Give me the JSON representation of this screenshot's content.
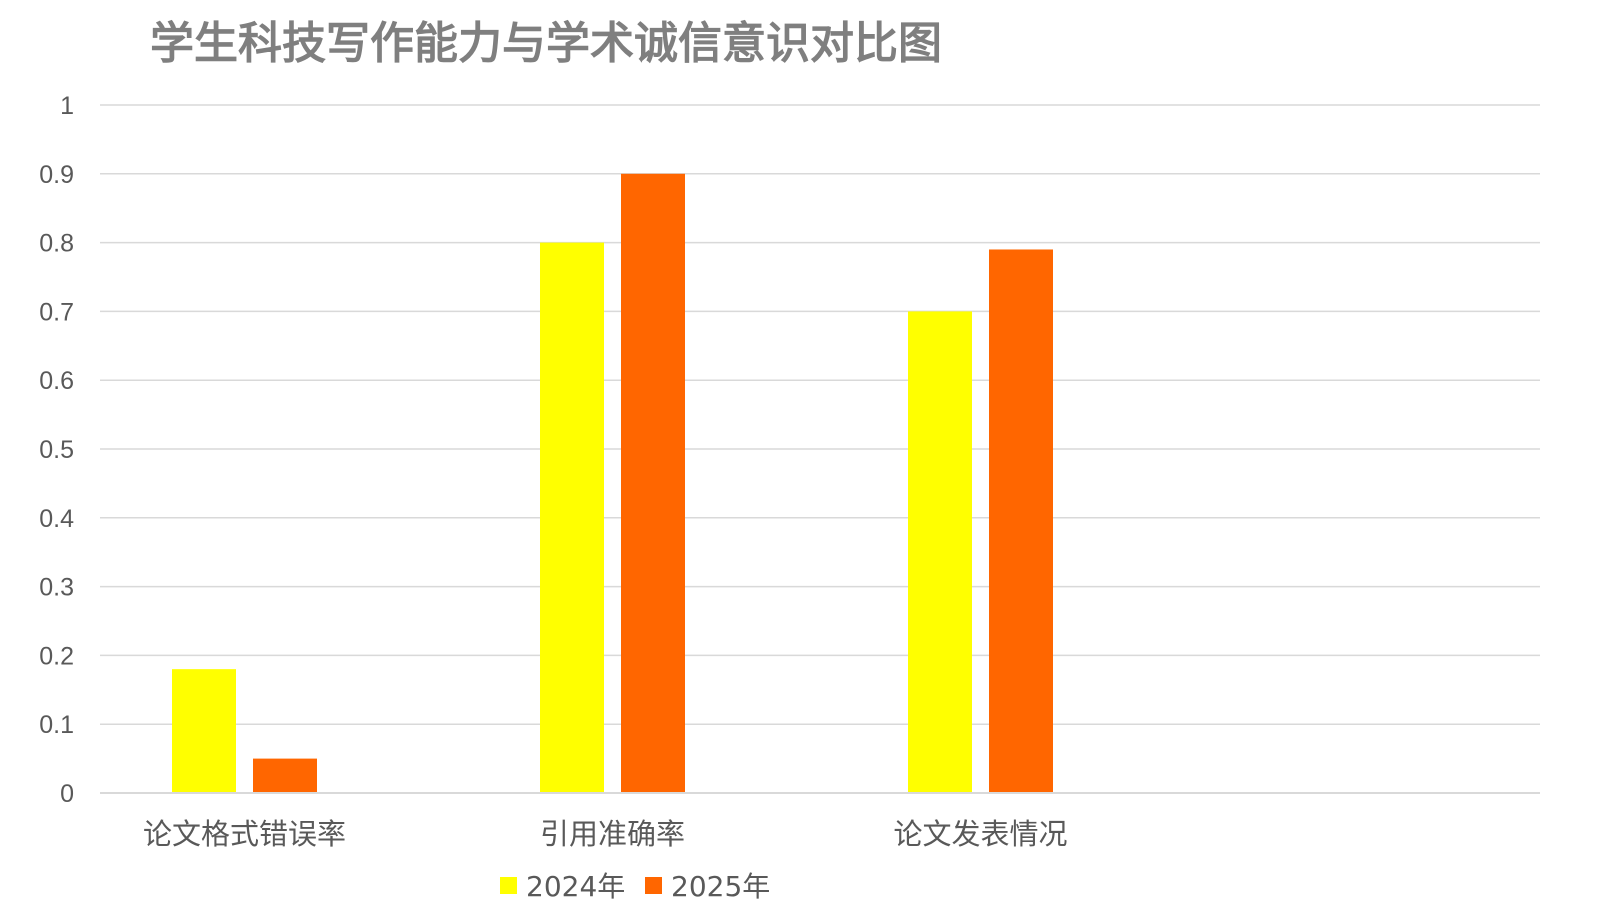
{
  "chart_data": {
    "type": "bar",
    "title": "学生科技写作能力与学术诚信意识对比图",
    "xlabel": "",
    "ylabel": "",
    "categories": [
      "论文格式错误率",
      "引用准确率",
      "论文发表情况"
    ],
    "series": [
      {
        "name": "2024年",
        "values": [
          0.18,
          0.8,
          0.7
        ],
        "color": "#ffff00"
      },
      {
        "name": "2025年",
        "values": [
          0.05,
          0.9,
          0.79
        ],
        "color": "#ff6600"
      }
    ],
    "ylim": [
      0,
      1
    ],
    "yticks": [
      "0",
      "0.1",
      "0.2",
      "0.3",
      "0.4",
      "0.5",
      "0.6",
      "0.7",
      "0.8",
      "0.9",
      "1"
    ],
    "grid": true,
    "legend_position": "bottom-left"
  }
}
